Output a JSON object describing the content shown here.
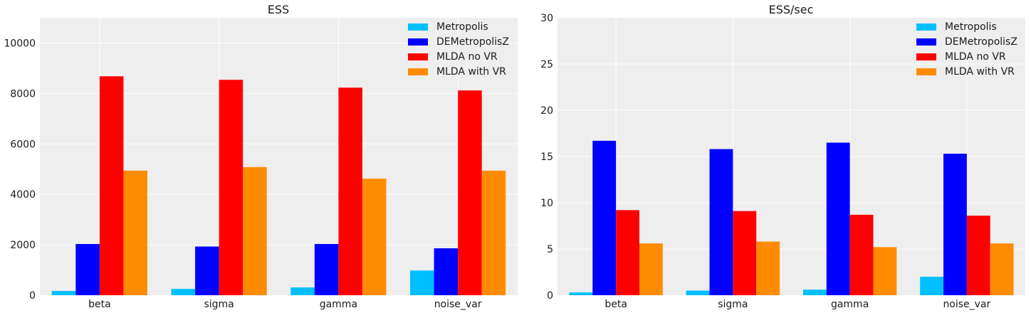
{
  "chart_data": [
    {
      "type": "bar",
      "title": "ESS",
      "categories": [
        "beta",
        "sigma",
        "gamma",
        "noise_var"
      ],
      "ylim": [
        0,
        11000
      ],
      "yticks": [
        0,
        2000,
        4000,
        6000,
        8000,
        10000
      ],
      "grid": true,
      "legend_position": "top-right",
      "series": [
        {
          "name": "Metropolis",
          "color": "#00bfff",
          "values": [
            170,
            250,
            310,
            980
          ]
        },
        {
          "name": "DEMetropolisZ",
          "color": "#0000ff",
          "values": [
            2030,
            1930,
            2030,
            1860
          ]
        },
        {
          "name": "MLDA no VR",
          "color": "#ff0000",
          "values": [
            8680,
            8540,
            8230,
            8120
          ]
        },
        {
          "name": "MLDA with VR",
          "color": "#ff8c00",
          "values": [
            4940,
            5080,
            4620,
            4940
          ]
        }
      ]
    },
    {
      "type": "bar",
      "title": "ESS/sec",
      "categories": [
        "beta",
        "sigma",
        "gamma",
        "noise_var"
      ],
      "ylim": [
        0,
        30
      ],
      "yticks": [
        0,
        5,
        10,
        15,
        20,
        25,
        30
      ],
      "grid": true,
      "legend_position": "top-right",
      "series": [
        {
          "name": "Metropolis",
          "color": "#00bfff",
          "values": [
            0.3,
            0.5,
            0.6,
            2.0
          ]
        },
        {
          "name": "DEMetropolisZ",
          "color": "#0000ff",
          "values": [
            16.7,
            15.8,
            16.5,
            15.3
          ]
        },
        {
          "name": "MLDA no VR",
          "color": "#ff0000",
          "values": [
            9.2,
            9.1,
            8.7,
            8.6
          ]
        },
        {
          "name": "MLDA with VR",
          "color": "#ff8c00",
          "values": [
            5.6,
            5.8,
            5.2,
            5.6
          ]
        }
      ]
    }
  ]
}
